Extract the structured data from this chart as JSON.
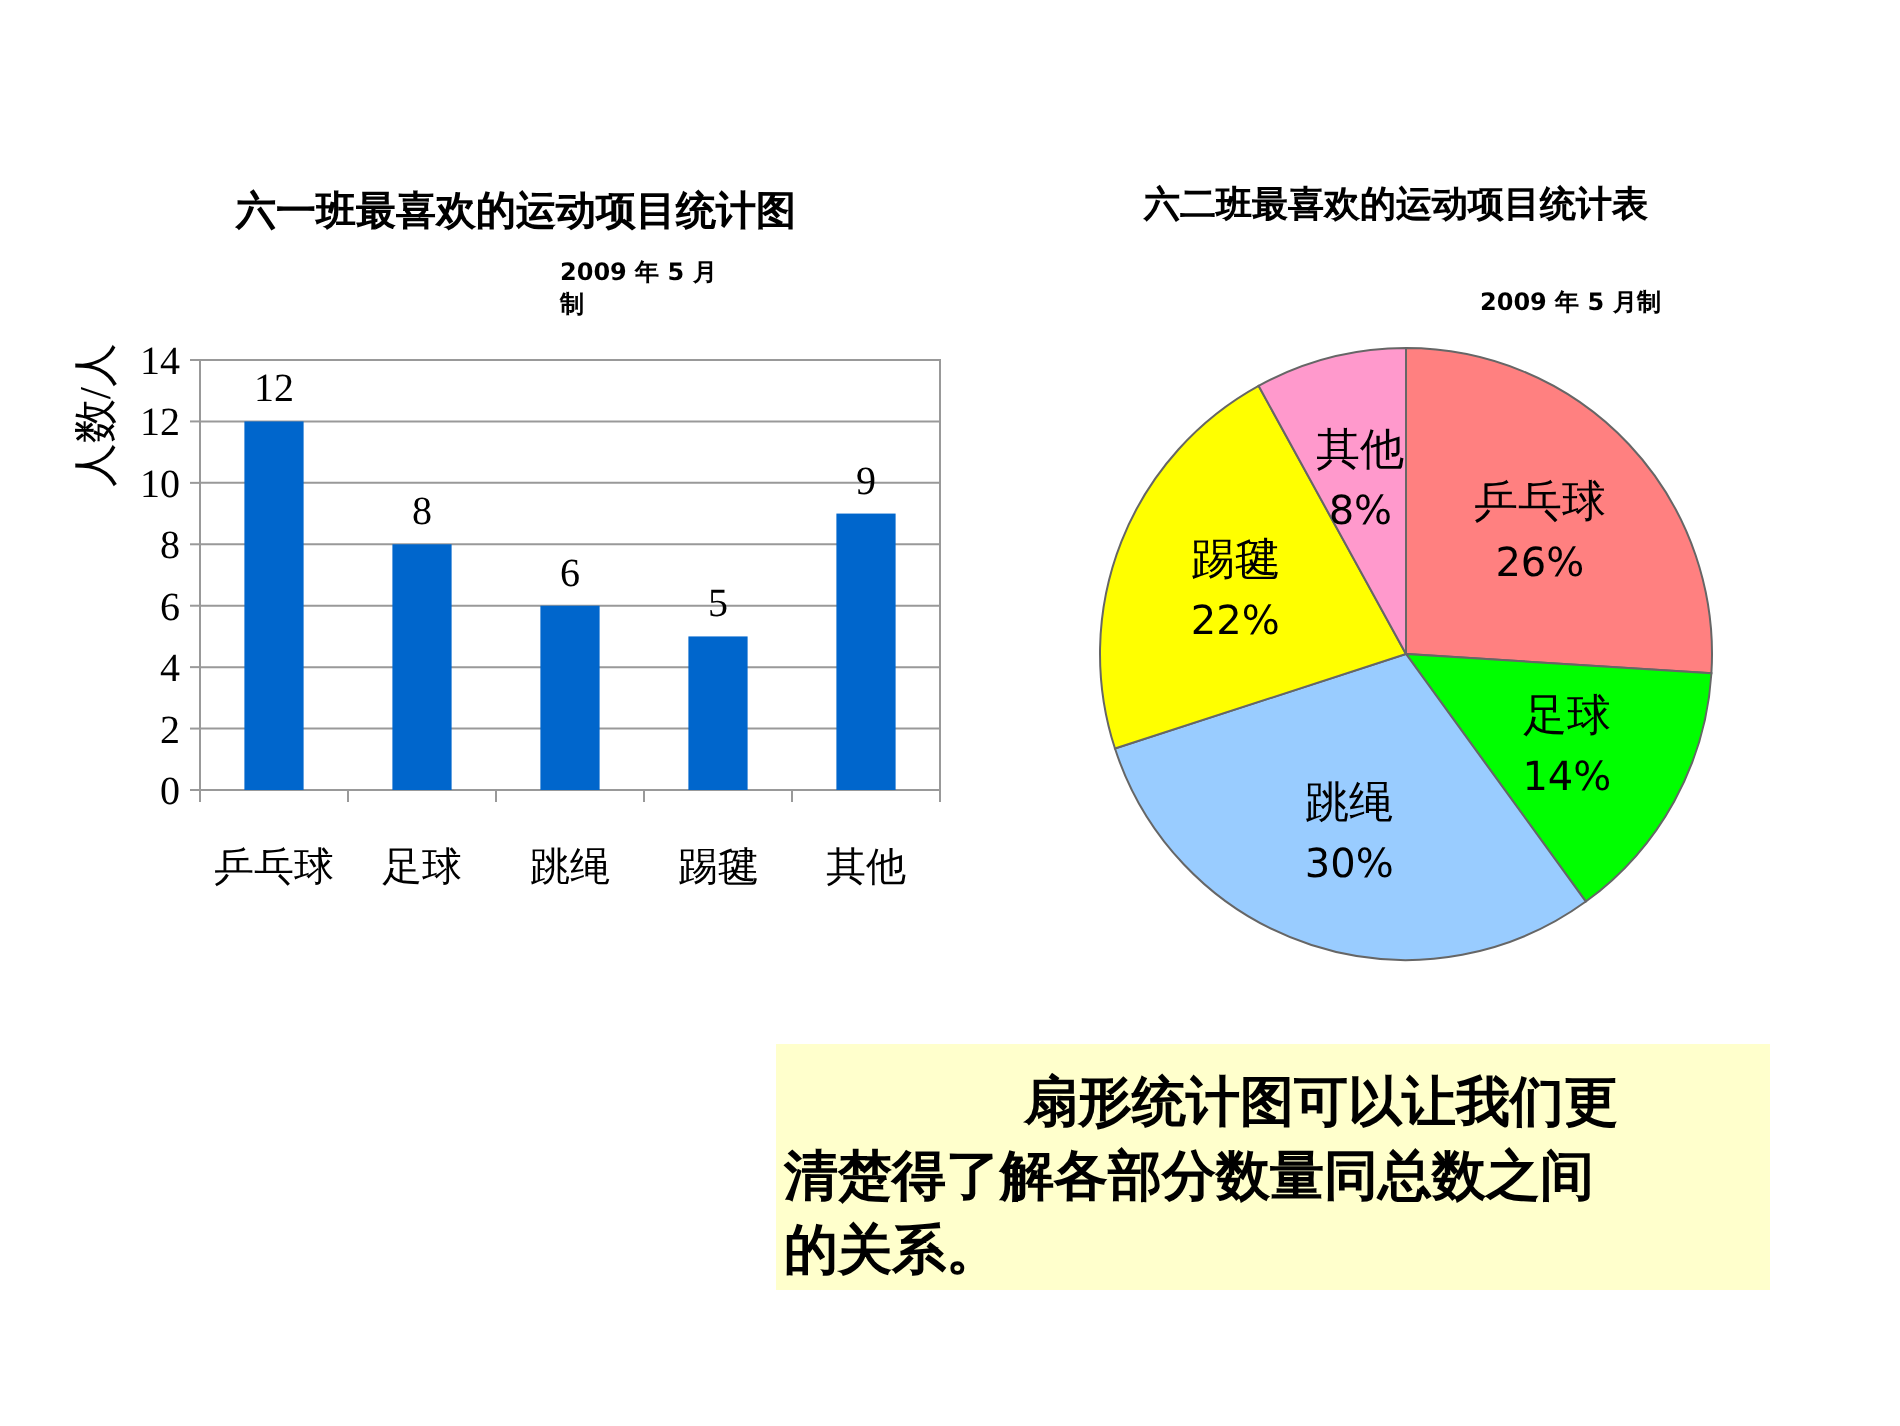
{
  "chart_data": [
    {
      "type": "bar",
      "title": "六一班最喜欢的运动项目统计图",
      "subtitle": "2009 年 5 月制",
      "ylabel": "人数/人",
      "categories": [
        "乒乓球",
        "足球",
        "跳绳",
        "踢毽",
        "其他"
      ],
      "values": [
        12,
        8,
        6,
        5,
        9
      ],
      "color": "#0066cc",
      "ylim": [
        0,
        14
      ],
      "yticks": [
        0,
        2,
        4,
        6,
        8,
        10,
        12,
        14
      ],
      "grid": "y",
      "data_labels": true
    },
    {
      "type": "pie",
      "title": "六二班最喜欢的运动项目统计表",
      "subtitle": "2009 年 5 月制",
      "categories": [
        "乒乓球",
        "足球",
        "跳绳",
        "踢毽",
        "其他"
      ],
      "values": [
        26,
        14,
        30,
        22,
        8
      ],
      "value_labels": [
        "26%",
        "14%",
        "30%",
        "22%",
        "8%"
      ],
      "colors": [
        "#ff8080",
        "#00ff00",
        "#99ccff",
        "#ffff00",
        "#ff99cc"
      ]
    },
    {
      "type": "other",
      "annotations": [
        "扇形统计图可以让我们更清楚得了解各部分数量同总数之间的关系。"
      ]
    }
  ]
}
